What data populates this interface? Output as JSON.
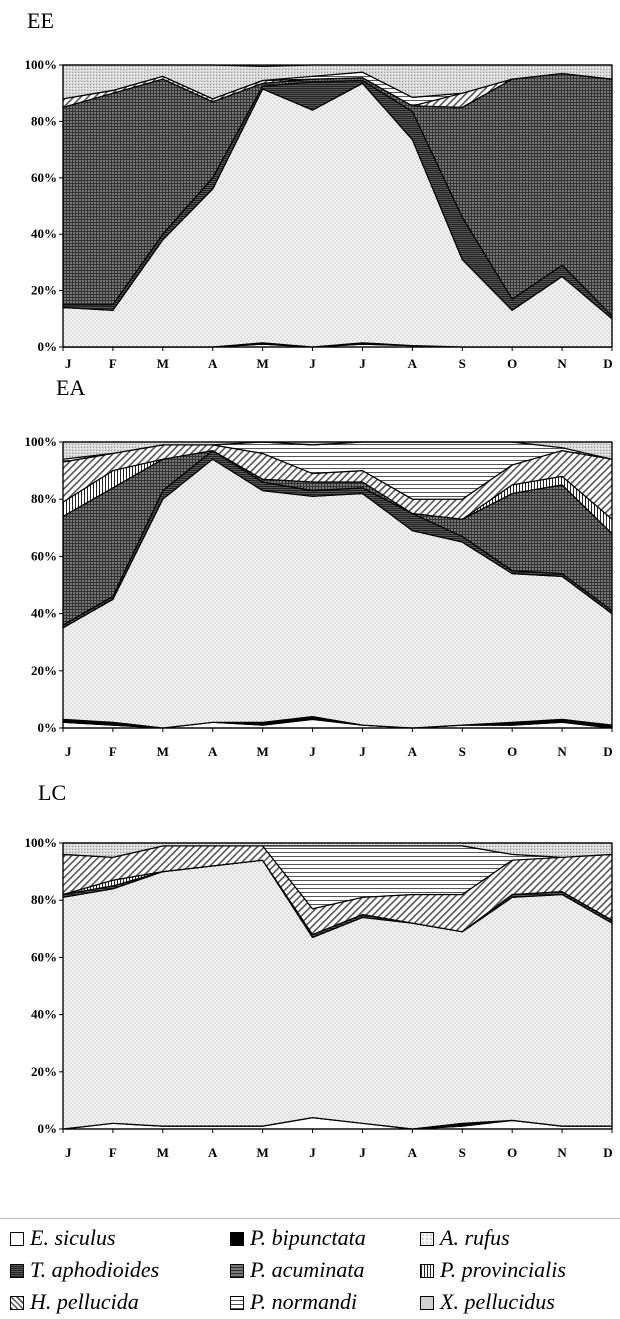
{
  "chart_data": [
    {
      "type": "area",
      "stacked": true,
      "title": "EE",
      "categories": [
        "J",
        "F",
        "M",
        "A",
        "M",
        "J",
        "J",
        "A",
        "S",
        "O",
        "N",
        "D"
      ],
      "yticks": [
        "0%",
        "20%",
        "40%",
        "60%",
        "80%",
        "100%"
      ],
      "ylim": [
        0,
        100
      ],
      "series": [
        {
          "name": "E. siculus",
          "values": [
            0,
            0,
            0,
            0,
            1,
            0,
            1,
            0.5,
            0,
            0,
            0,
            0
          ]
        },
        {
          "name": "P. bipunctata",
          "values": [
            0,
            0,
            0,
            0,
            0.5,
            0,
            0.5,
            0,
            0,
            0,
            0,
            0
          ]
        },
        {
          "name": "A. rufus",
          "values": [
            14,
            13,
            38,
            56,
            90,
            84,
            92,
            73,
            31,
            13,
            25,
            10
          ]
        },
        {
          "name": "T. aphodioides",
          "values": [
            1,
            2,
            2,
            4,
            1,
            10,
            1,
            10,
            15,
            4,
            4,
            1
          ]
        },
        {
          "name": "P. acuminata",
          "values": [
            70,
            75,
            55,
            27,
            1,
            1,
            1,
            2,
            39,
            78,
            68,
            84
          ]
        },
        {
          "name": "P. provincialis",
          "values": [
            0,
            0,
            0,
            0,
            0,
            0,
            0,
            0,
            0,
            0,
            0,
            0
          ]
        },
        {
          "name": "H. pellucida",
          "values": [
            3,
            1,
            1,
            1,
            1,
            0,
            0,
            0,
            5,
            0,
            0,
            0
          ]
        },
        {
          "name": "P. normandi",
          "values": [
            0,
            0,
            0,
            0,
            0,
            1,
            2,
            3,
            0,
            0,
            0,
            0
          ]
        },
        {
          "name": "X. pellucidus",
          "values": [
            12,
            9,
            4,
            12,
            5,
            4,
            2.5,
            11.5,
            10,
            5,
            3,
            5
          ]
        }
      ]
    },
    {
      "type": "area",
      "stacked": true,
      "title": "EA",
      "categories": [
        "J",
        "F",
        "M",
        "A",
        "M",
        "J",
        "J",
        "A",
        "S",
        "O",
        "N",
        "D"
      ],
      "yticks": [
        "0%",
        "20%",
        "40%",
        "60%",
        "80%",
        "100%"
      ],
      "ylim": [
        0,
        100
      ],
      "series": [
        {
          "name": "E. siculus",
          "values": [
            2,
            1,
            0,
            2,
            1,
            3,
            1,
            0,
            1,
            1,
            2,
            0
          ]
        },
        {
          "name": "P. bipunctata",
          "values": [
            1,
            1,
            0,
            0,
            1,
            1,
            0,
            0,
            0,
            1,
            1,
            1
          ]
        },
        {
          "name": "A. rufus",
          "values": [
            32,
            43,
            80,
            92,
            81,
            77,
            81,
            69,
            64,
            52,
            50,
            39
          ]
        },
        {
          "name": "T. aphodioides",
          "values": [
            1,
            1,
            3,
            3,
            3,
            2,
            2,
            6,
            2,
            1,
            1,
            1
          ]
        },
        {
          "name": "P. acuminata",
          "values": [
            38,
            38,
            11,
            0,
            1,
            3,
            2,
            0,
            6,
            27,
            31,
            27
          ]
        },
        {
          "name": "P. provincialis",
          "values": [
            5,
            6,
            0,
            0,
            0,
            0,
            0,
            0,
            0,
            3,
            3,
            5
          ]
        },
        {
          "name": "H. pellucida",
          "values": [
            14,
            6,
            5,
            2,
            9,
            3,
            4,
            5,
            7,
            7,
            9,
            21
          ]
        },
        {
          "name": "P. normandi",
          "values": [
            1,
            0,
            0,
            0,
            4,
            10,
            10,
            20,
            20,
            8,
            1,
            0
          ]
        },
        {
          "name": "X. pellucidus",
          "values": [
            6,
            4,
            1,
            1,
            0,
            1,
            0,
            0,
            0,
            0,
            2,
            6
          ]
        }
      ]
    },
    {
      "type": "area",
      "stacked": true,
      "title": "LC",
      "categories": [
        "J",
        "F",
        "M",
        "A",
        "M",
        "J",
        "J",
        "A",
        "S",
        "O",
        "N",
        "D"
      ],
      "yticks": [
        "0%",
        "20%",
        "40%",
        "60%",
        "80%",
        "100%"
      ],
      "ylim": [
        0,
        100
      ],
      "series": [
        {
          "name": "E. siculus",
          "values": [
            0,
            2,
            1,
            1,
            1,
            4,
            2,
            0,
            1,
            3,
            1,
            1
          ]
        },
        {
          "name": "P. bipunctata",
          "values": [
            0,
            0,
            0,
            0,
            0,
            0,
            0,
            0,
            1,
            0,
            0,
            0
          ]
        },
        {
          "name": "A. rufus",
          "values": [
            81,
            82,
            89,
            91,
            93,
            63,
            72,
            72,
            67,
            78,
            81,
            71
          ]
        },
        {
          "name": "T. aphodioides",
          "values": [
            1,
            1,
            0,
            0,
            0,
            1,
            1,
            0,
            0,
            1,
            1,
            1
          ]
        },
        {
          "name": "P. acuminata",
          "values": [
            0,
            0,
            0,
            0,
            0,
            0,
            0,
            0,
            0,
            0,
            0,
            0
          ]
        },
        {
          "name": "P. provincialis",
          "values": [
            0,
            2,
            0,
            0,
            0,
            0,
            0,
            0,
            0,
            0,
            0,
            0
          ]
        },
        {
          "name": "H. pellucida",
          "values": [
            14,
            8,
            9,
            7,
            5,
            9,
            6,
            10,
            13,
            12,
            12,
            23
          ]
        },
        {
          "name": "P. normandi",
          "values": [
            0,
            0,
            0,
            0,
            0,
            22,
            18,
            17,
            17,
            2,
            0,
            0
          ]
        },
        {
          "name": "X. pellucidus",
          "values": [
            4,
            5,
            1,
            1,
            1,
            1,
            1,
            1,
            1,
            4,
            5,
            4
          ]
        }
      ]
    }
  ],
  "legend": [
    {
      "label": "E. siculus",
      "pattern": "white"
    },
    {
      "label": "P. bipunctata",
      "pattern": "black"
    },
    {
      "label": "A. rufus",
      "pattern": "dots"
    },
    {
      "label": "T. aphodioides",
      "pattern": "hlines-dense"
    },
    {
      "label": "P. acuminata",
      "pattern": "grid"
    },
    {
      "label": "P. provincialis",
      "pattern": "vlines"
    },
    {
      "label": "H. pellucida",
      "pattern": "diagonal"
    },
    {
      "label": "P. normandi",
      "pattern": "hlines"
    },
    {
      "label": "X. pellucidus",
      "pattern": "speckle"
    }
  ]
}
